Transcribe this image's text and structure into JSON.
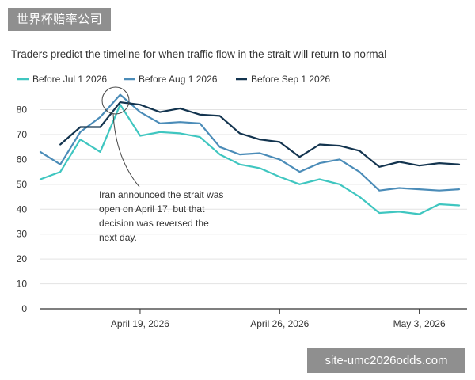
{
  "watermarks": {
    "top_left": "世界杯赔率公司",
    "bottom_right": "site-umc2026odds.com"
  },
  "colors": {
    "series_jul": "#3fc6c0",
    "series_aug": "#4b8cb8",
    "series_sep": "#13344f",
    "gridline": "#e3e3e3",
    "axis": "#333333",
    "watermark_bg": "#8f8f8f"
  },
  "chart_data": {
    "type": "line",
    "title": "Traders predict the timeline for when traffic flow in the strait will return to normal",
    "ylim": [
      0,
      80
    ],
    "yticks": [
      0,
      10,
      20,
      30,
      40,
      50,
      60,
      70,
      80
    ],
    "grid": true,
    "legend_position": "top-left",
    "x": [
      "Apr 14",
      "Apr 15",
      "Apr 16",
      "Apr 17",
      "Apr 18",
      "Apr 19",
      "Apr 20",
      "Apr 21",
      "Apr 22",
      "Apr 23",
      "Apr 24",
      "Apr 25",
      "Apr 26",
      "Apr 27",
      "Apr 28",
      "Apr 29",
      "Apr 30",
      "May 1",
      "May 2",
      "May 3",
      "May 4",
      "May 5"
    ],
    "xticks": [
      {
        "label": "April 19, 2026",
        "x": "Apr 19"
      },
      {
        "label": "April 26, 2026",
        "x": "Apr 26"
      },
      {
        "label": "May 3, 2026",
        "x": "May 3"
      }
    ],
    "series": [
      {
        "name": "Before Jul 1 2026",
        "color": "#3fc6c0",
        "values": [
          52,
          55,
          68,
          63,
          82,
          69.5,
          71,
          70.5,
          69,
          62,
          58,
          56.5,
          53,
          50,
          52,
          50,
          45,
          38.5,
          39,
          38,
          42,
          41.5
        ]
      },
      {
        "name": "Before Aug 1 2026",
        "color": "#4b8cb8",
        "values": [
          63,
          58,
          71,
          77,
          86,
          79,
          74.5,
          75,
          74.5,
          65,
          62,
          62.5,
          60,
          55,
          58.5,
          60,
          55,
          47.5,
          48.5,
          48,
          47.5,
          48
        ]
      },
      {
        "name": "Before Sep 1 2026",
        "color": "#13344f",
        "values": [
          null,
          66,
          73,
          73,
          83,
          82,
          79,
          80.5,
          78,
          77.5,
          70.5,
          68,
          67,
          61,
          66,
          65.5,
          63.5,
          57,
          59,
          57.5,
          58.5,
          58
        ]
      }
    ],
    "annotation": {
      "lines": [
        "Iran announced the strait was",
        "open on April 17, but that",
        "decision was reversed the",
        "next day."
      ]
    }
  }
}
